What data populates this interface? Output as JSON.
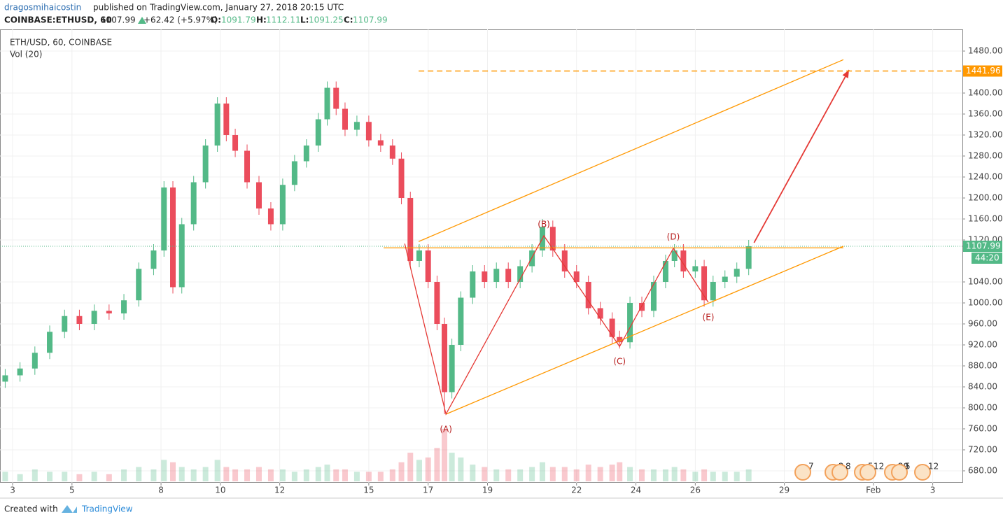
{
  "header": {
    "author": "dragosmihaicostin",
    "published": "published on TradingView.com, January 27, 2018 20:15 UTC",
    "symbol": "COINBASE:ETHUSD, 60",
    "last": 1107.99,
    "change": "+62.42 (+5.97%)",
    "open_label": "O:",
    "open": 1091.79,
    "high_label": "H:",
    "high": 1112.11,
    "low_label": "L:",
    "low": 1091.25,
    "close_label": "C:",
    "close": 1107.99
  },
  "footer": {
    "created": "Created with",
    "brand": "TradingView"
  },
  "chart_data": {
    "type": "candlestick",
    "legend": [
      "ETH/USD, 60, COINBASE",
      "Vol (20)"
    ],
    "up_color": "#53b987",
    "down_color": "#eb4d5c",
    "x": [
      2.75,
      3.25,
      3.75,
      4.25,
      4.75,
      5.25,
      5.75,
      6.25,
      6.75,
      7.25,
      7.75,
      8.1,
      8.4,
      8.7,
      9.1,
      9.5,
      9.9,
      10.2,
      10.5,
      10.9,
      11.3,
      11.7,
      12.1,
      12.5,
      12.9,
      13.3,
      13.6,
      13.9,
      14.2,
      14.6,
      15.0,
      15.4,
      15.8,
      16.1,
      16.4,
      16.7,
      17.0,
      17.3,
      17.55,
      17.8,
      18.1,
      18.5,
      18.9,
      19.3,
      19.7,
      20.1,
      20.5,
      20.85,
      21.2,
      21.6,
      22.0,
      22.4,
      22.8,
      23.2,
      23.45,
      23.8,
      24.2,
      24.6,
      25.0,
      25.3,
      25.6,
      26.0,
      26.3,
      26.6,
      27.0,
      27.4,
      27.8
    ],
    "open": [
      850,
      862,
      875,
      905,
      945,
      975,
      960,
      985,
      980,
      1005,
      1065,
      1100,
      1220,
      1030,
      1150,
      1230,
      1300,
      1380,
      1320,
      1290,
      1230,
      1180,
      1150,
      1225,
      1270,
      1300,
      1350,
      1410,
      1370,
      1330,
      1345,
      1310,
      1300,
      1275,
      1200,
      1080,
      1100,
      1040,
      960,
      830,
      920,
      1010,
      1060,
      1040,
      1065,
      1040,
      1070,
      1100,
      1145,
      1100,
      1060,
      1040,
      990,
      970,
      935,
      925,
      1000,
      985,
      1040,
      1080,
      1100,
      1060,
      1070,
      1005,
      1040,
      1050,
      1065
    ],
    "high": [
      874,
      887,
      917,
      957,
      987,
      987,
      997,
      997,
      1017,
      1077,
      1112,
      1232,
      1232,
      1162,
      1242,
      1312,
      1392,
      1392,
      1332,
      1302,
      1242,
      1192,
      1237,
      1282,
      1312,
      1362,
      1422,
      1422,
      1382,
      1357,
      1357,
      1322,
      1312,
      1287,
      1212,
      1112,
      1112,
      1052,
      972,
      932,
      1022,
      1072,
      1072,
      1077,
      1077,
      1082,
      1112,
      1160,
      1157,
      1112,
      1072,
      1052,
      1002,
      982,
      947,
      1012,
      1012,
      1052,
      1092,
      1112,
      1112,
      1082,
      1082,
      1052,
      1062,
      1077,
      1120
    ],
    "low": [
      838,
      850,
      863,
      893,
      933,
      948,
      948,
      968,
      968,
      993,
      1053,
      1088,
      1018,
      1018,
      1138,
      1218,
      1288,
      1308,
      1278,
      1218,
      1168,
      1138,
      1138,
      1213,
      1258,
      1288,
      1338,
      1358,
      1318,
      1318,
      1298,
      1288,
      1263,
      1188,
      1068,
      1068,
      1028,
      948,
      788,
      818,
      908,
      998,
      1028,
      1028,
      1028,
      1028,
      1058,
      1088,
      1088,
      1048,
      1028,
      978,
      958,
      923,
      913,
      913,
      973,
      973,
      1028,
      1068,
      1048,
      1048,
      993,
      993,
      1028,
      1038,
      1053
    ],
    "close": [
      862,
      875,
      905,
      945,
      975,
      960,
      985,
      980,
      1005,
      1065,
      1100,
      1220,
      1030,
      1150,
      1230,
      1300,
      1380,
      1320,
      1290,
      1230,
      1180,
      1150,
      1225,
      1270,
      1300,
      1350,
      1410,
      1370,
      1330,
      1345,
      1310,
      1300,
      1275,
      1200,
      1080,
      1100,
      1040,
      960,
      830,
      920,
      1010,
      1060,
      1040,
      1065,
      1040,
      1070,
      1100,
      1145,
      1100,
      1060,
      1040,
      990,
      970,
      935,
      925,
      1000,
      985,
      1040,
      1080,
      1100,
      1060,
      1070,
      1005,
      1040,
      1050,
      1065,
      1108
    ],
    "volume": [
      4,
      3,
      5,
      4,
      4,
      3,
      4,
      3,
      5,
      6,
      5,
      9,
      8,
      6,
      5,
      6,
      9,
      6,
      5,
      5,
      6,
      5,
      5,
      4,
      5,
      6,
      7,
      5,
      5,
      4,
      4,
      4,
      5,
      8,
      12,
      9,
      10,
      14,
      22,
      12,
      10,
      7,
      6,
      5,
      5,
      5,
      6,
      8,
      6,
      6,
      5,
      7,
      6,
      7,
      8,
      6,
      5,
      5,
      5,
      6,
      5,
      4,
      5,
      4,
      4,
      4,
      5
    ],
    "xlim": [
      2.575,
      35.0
    ],
    "xticks": [
      3,
      5,
      8,
      10,
      12,
      15,
      17,
      19,
      22,
      24,
      26,
      29,
      {
        "value": 32,
        "label": "Feb"
      },
      {
        "value": 34,
        "label": "3"
      }
    ],
    "ylim": [
      657.33,
      1521.33
    ],
    "yticks": [
      {
        "value": 680,
        "label": "680.00"
      },
      {
        "value": 720,
        "label": "720.00"
      },
      {
        "value": 760,
        "label": "760.00"
      },
      {
        "value": 800,
        "label": "800.00"
      },
      {
        "value": 840,
        "label": "840.00"
      },
      {
        "value": 880,
        "label": "880.00"
      },
      {
        "value": 920,
        "label": "920.00"
      },
      {
        "value": 960,
        "label": "960.00"
      },
      {
        "value": 1000,
        "label": "1000.00"
      },
      {
        "value": 1040,
        "label": "1040.00"
      },
      {
        "value": 1120,
        "label": "1120.00"
      },
      {
        "value": 1160,
        "label": "1160.00"
      },
      {
        "value": 1200,
        "label": "1200.00"
      },
      {
        "value": 1240,
        "label": "1240.00"
      },
      {
        "value": 1280,
        "label": "1280.00"
      },
      {
        "value": 1320,
        "label": "1320.00"
      },
      {
        "value": 1360,
        "label": "1360.00"
      },
      {
        "value": 1400,
        "label": "1400.00"
      },
      {
        "value": 1480,
        "label": "1480.00"
      }
    ],
    "grid": true,
    "last_price": 1107.99,
    "countdown": "44:20",
    "target_level": {
      "x_start": 16.68,
      "value": 1441.96,
      "color": "#ff9800"
    },
    "zigzag": {
      "x": [
        16.21,
        17.6,
        20.9,
        23.45,
        25.26,
        26.44
      ],
      "y": [
        1113,
        788,
        1128,
        917,
        1104,
        1001
      ],
      "color": "#e53935"
    },
    "wave_labels": [
      "(A)",
      "(B)",
      "(C)",
      "(D)",
      "(E)"
    ],
    "channel_upper": {
      "x": [
        16.68,
        30.99
      ],
      "y": [
        1117,
        1463.6
      ],
      "color": "#ff9800"
    },
    "channel_lower": {
      "x": [
        17.6,
        30.99
      ],
      "y": [
        788,
        1108
      ],
      "color": "#ff9800"
    },
    "resistance": {
      "x": [
        15.5,
        30.99
      ],
      "y": [
        1105,
        1105
      ],
      "color": "#ff9800"
    },
    "target_arrow": {
      "x": [
        27.98,
        31.18
      ],
      "y": [
        1114.7,
        1444
      ],
      "color": "#e53935"
    },
    "events": [
      7,
      2,
      8,
      5,
      12,
      29,
      5,
      12
    ]
  }
}
